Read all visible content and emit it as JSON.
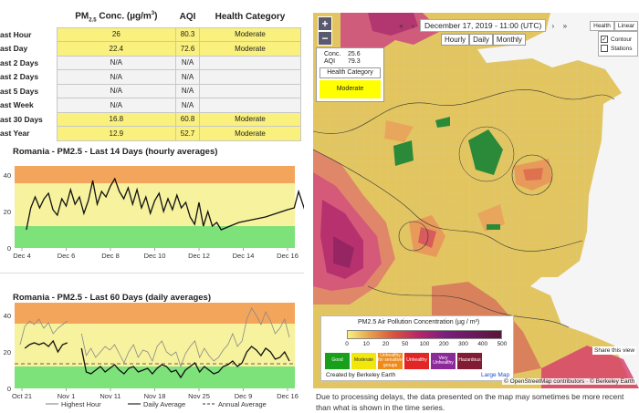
{
  "table": {
    "headers": [
      "PM2.5 Conc. (µg/m³)",
      "AQI",
      "Health Category"
    ],
    "rows": [
      {
        "label": "ast Hour",
        "conc": "26",
        "aqi": "80.3",
        "cat": "Moderate",
        "hl": true
      },
      {
        "label": "ast Day",
        "conc": "22.4",
        "aqi": "72.6",
        "cat": "Moderate",
        "hl": true
      },
      {
        "label": "ast 2 Days",
        "conc": "N/A",
        "aqi": "N/A",
        "cat": "",
        "hl": false
      },
      {
        "label": "ast 2 Days",
        "conc": "N/A",
        "aqi": "N/A",
        "cat": "",
        "hl": false
      },
      {
        "label": "ast 5 Days",
        "conc": "N/A",
        "aqi": "N/A",
        "cat": "",
        "hl": false
      },
      {
        "label": "ast Week",
        "conc": "N/A",
        "aqi": "N/A",
        "cat": "",
        "hl": false
      },
      {
        "label": "ast 30 Days",
        "conc": "16.8",
        "aqi": "60.8",
        "cat": "Moderate",
        "hl": true
      },
      {
        "label": "ast Year",
        "conc": "12.9",
        "aqi": "52.7",
        "cat": "Moderate",
        "hl": true
      }
    ]
  },
  "chart_data": [
    {
      "type": "line",
      "title": "Romania - PM2.5 - Last 14 Days (hourly averages)",
      "ylim": [
        0,
        45
      ],
      "yticks": [
        0,
        20,
        40
      ],
      "xticks": [
        "Dec 4",
        "Dec 6",
        "Dec 8",
        "Dec 10",
        "Dec 12",
        "Dec 14",
        "Dec 16"
      ],
      "xlim": [
        4,
        17.3
      ],
      "bands": [
        {
          "from": 0,
          "to": 12,
          "color": "#7ee27a"
        },
        {
          "from": 12,
          "to": 35.5,
          "color": "#f7f29e"
        },
        {
          "from": 35.5,
          "to": 45,
          "color": "#f4a55c"
        }
      ],
      "series": [
        {
          "color": "#111",
          "x": [
            4.2,
            4.4,
            4.6,
            4.8,
            5.0,
            5.2,
            5.4,
            5.6,
            5.8,
            6.0,
            6.2,
            6.4,
            6.6,
            6.8,
            7.0,
            7.2,
            7.4,
            7.6,
            7.8,
            8.0,
            8.2,
            8.4,
            8.6,
            8.8,
            9.0,
            9.2,
            9.4,
            9.6,
            9.8,
            10.0,
            10.2,
            10.4,
            10.6,
            10.8,
            11.0,
            11.2,
            11.4,
            11.6,
            11.8,
            12.0,
            12.2,
            12.4,
            12.6,
            12.8,
            13.0,
            13.2,
            13.4,
            13.6,
            13.8,
            15.0,
            15.5,
            16.0,
            16.3,
            16.5,
            16.8,
            17.0,
            17.2
          ],
          "y": [
            10,
            22,
            28,
            22,
            27,
            30,
            21,
            18,
            27,
            23,
            32,
            24,
            28,
            19,
            26,
            37,
            24,
            31,
            28,
            34,
            38,
            31,
            27,
            33,
            24,
            32,
            22,
            28,
            19,
            26,
            30,
            20,
            27,
            21,
            29,
            22,
            25,
            17,
            13,
            25,
            12,
            20,
            12,
            14,
            10,
            11,
            12,
            13,
            14,
            17,
            19,
            21,
            22,
            31,
            20,
            22,
            28
          ]
        }
      ]
    },
    {
      "type": "line",
      "title": "Romania - PM2.5 - Last 60 Days (daily averages)",
      "ylim": [
        0,
        47
      ],
      "yticks": [
        0,
        20,
        40
      ],
      "xticks": [
        "Oct 21",
        "Nov 1",
        "Nov 11",
        "Nov 18",
        "Nov 25",
        "Dec 9",
        "Dec 16"
      ],
      "bands": [
        {
          "from": 0,
          "to": 12,
          "color": "#7ee27a"
        },
        {
          "from": 12,
          "to": 35.5,
          "color": "#f7f29e"
        },
        {
          "from": 35.5,
          "to": 47,
          "color": "#f4a55c"
        }
      ],
      "annual_average": 13.5,
      "series": [
        {
          "name": "Highest Hour",
          "color": "#888",
          "x": [
            0,
            1,
            2,
            3,
            4,
            5,
            6,
            7,
            8,
            9,
            10,
            11,
            12,
            13,
            14,
            15,
            16,
            17,
            18,
            19,
            20,
            21,
            22,
            23,
            24,
            25,
            26,
            27,
            28,
            29,
            30,
            31,
            32,
            33,
            34,
            35,
            36,
            37,
            38,
            39,
            40,
            41,
            42,
            43,
            44,
            45,
            46,
            47,
            48,
            49,
            50,
            51,
            52,
            53,
            54,
            55,
            56,
            57
          ],
          "y": [
            24,
            34,
            37,
            35,
            38,
            33,
            36,
            30,
            33,
            35,
            37,
            null,
            null,
            30,
            18,
            22,
            17,
            20,
            23,
            21,
            24,
            19,
            14,
            20,
            24,
            17,
            21,
            20,
            15,
            23,
            26,
            20,
            18,
            20,
            12,
            19,
            23,
            26,
            17,
            22,
            18,
            15,
            17,
            21,
            24,
            30,
            23,
            26,
            38,
            44,
            40,
            35,
            42,
            37,
            30,
            33,
            38,
            28
          ]
        },
        {
          "name": "Daily Average",
          "color": "#111",
          "x": [
            0,
            1,
            2,
            3,
            4,
            5,
            6,
            7,
            8,
            9,
            10,
            11,
            12,
            13,
            14,
            15,
            16,
            17,
            18,
            19,
            20,
            21,
            22,
            23,
            24,
            25,
            26,
            27,
            28,
            29,
            30,
            31,
            32,
            33,
            34,
            35,
            36,
            37,
            38,
            39,
            40,
            41,
            42,
            43,
            44,
            45,
            46,
            47,
            48,
            49,
            50,
            51,
            52,
            53,
            54,
            55,
            56,
            57
          ],
          "y": [
            null,
            22,
            24,
            25,
            24,
            25,
            23,
            26,
            20,
            24,
            25,
            null,
            null,
            22,
            9,
            8,
            10,
            12,
            9,
            11,
            13,
            10,
            8,
            11,
            12,
            9,
            10,
            11,
            8,
            11,
            13,
            12,
            9,
            10,
            6,
            10,
            12,
            14,
            9,
            12,
            10,
            8,
            9,
            12,
            13,
            15,
            12,
            14,
            20,
            23,
            21,
            18,
            22,
            20,
            16,
            17,
            20,
            15
          ]
        }
      ],
      "legend": [
        "Highest Hour",
        "Daily Average",
        "Annual Average"
      ]
    }
  ],
  "map": {
    "date": "December 17, 2019 - 11:00 (UTC)",
    "range_tabs": [
      "Hourly",
      "Daily",
      "Monthly"
    ],
    "layer_tabs": [
      "Health",
      "Linear"
    ],
    "layers": [
      {
        "label": "Contour",
        "checked": true
      },
      {
        "label": "Stations",
        "checked": false
      }
    ],
    "zoom_in": "+",
    "zoom_out": "−",
    "popup": {
      "conc_label": "Conc.",
      "conc": "25.6",
      "aqi_label": "AQI",
      "aqi": "79.3",
      "cat_head": "Health Category",
      "cat": "Moderate"
    },
    "legend": {
      "title": "PM2.5 Air Pollution Concentration (µg / m³)",
      "ticks": [
        "0",
        "10",
        "20",
        "50",
        "100",
        "200",
        "300",
        "400",
        "500"
      ],
      "categories": [
        {
          "label": "Good",
          "color": "#18a01a"
        },
        {
          "label": "Moderate",
          "color": "#f1e70b"
        },
        {
          "label": "Unhealthy for sensitive groups",
          "color": "#f08a18"
        },
        {
          "label": "Unhealthy",
          "color": "#e22525"
        },
        {
          "label": "Very Unhealthy",
          "color": "#8c2a9a"
        },
        {
          "label": "Hazardous",
          "color": "#821b33"
        }
      ],
      "credit": "Created by Berkeley Earth",
      "large_map": "Large Map"
    },
    "share": "Share this view",
    "attribution": "© OpenStreetMap contributors  ·  © Berkeley Earth"
  },
  "delay_note": "Due to processing delays, the data presented on the map may sometimes be more recent than what is shown in the time series."
}
